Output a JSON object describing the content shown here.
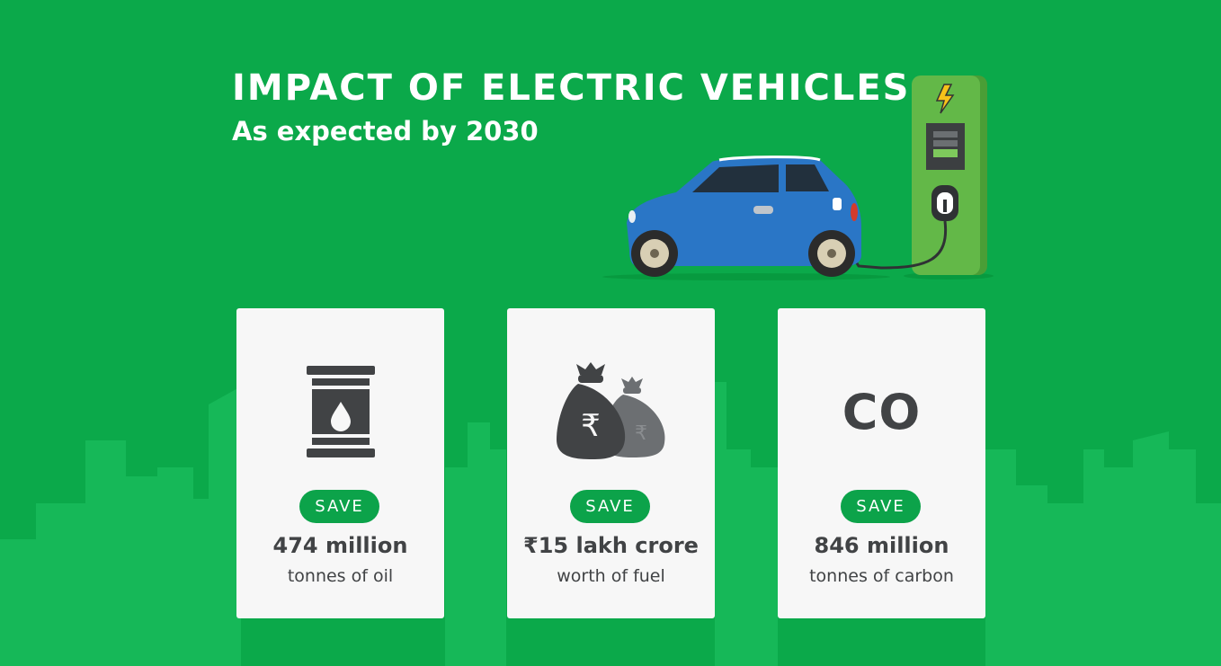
{
  "header": {
    "title": "IMPACT OF ELECTRIC VEHICLES",
    "subtitle": "As expected by 2030"
  },
  "colors": {
    "background": "#0ba94a",
    "skyline": "#16b858",
    "card": "#f7f7f7",
    "pill": "#0ca34a",
    "text_dark": "#414345",
    "car_body": "#2a76c6",
    "charger": "#63b848",
    "bolt": "#f6c21a"
  },
  "cards": [
    {
      "icon": "oil-barrel-icon",
      "badge": "SAVE",
      "value": "474 million",
      "unit": "tonnes of oil"
    },
    {
      "icon": "money-bags-icon",
      "badge": "SAVE",
      "value": "₹15 lakh crore",
      "unit": "worth of fuel"
    },
    {
      "icon": "co2-icon",
      "icon_text": "CO",
      "badge": "SAVE",
      "value": "846 million",
      "unit": "tonnes of carbon"
    }
  ]
}
